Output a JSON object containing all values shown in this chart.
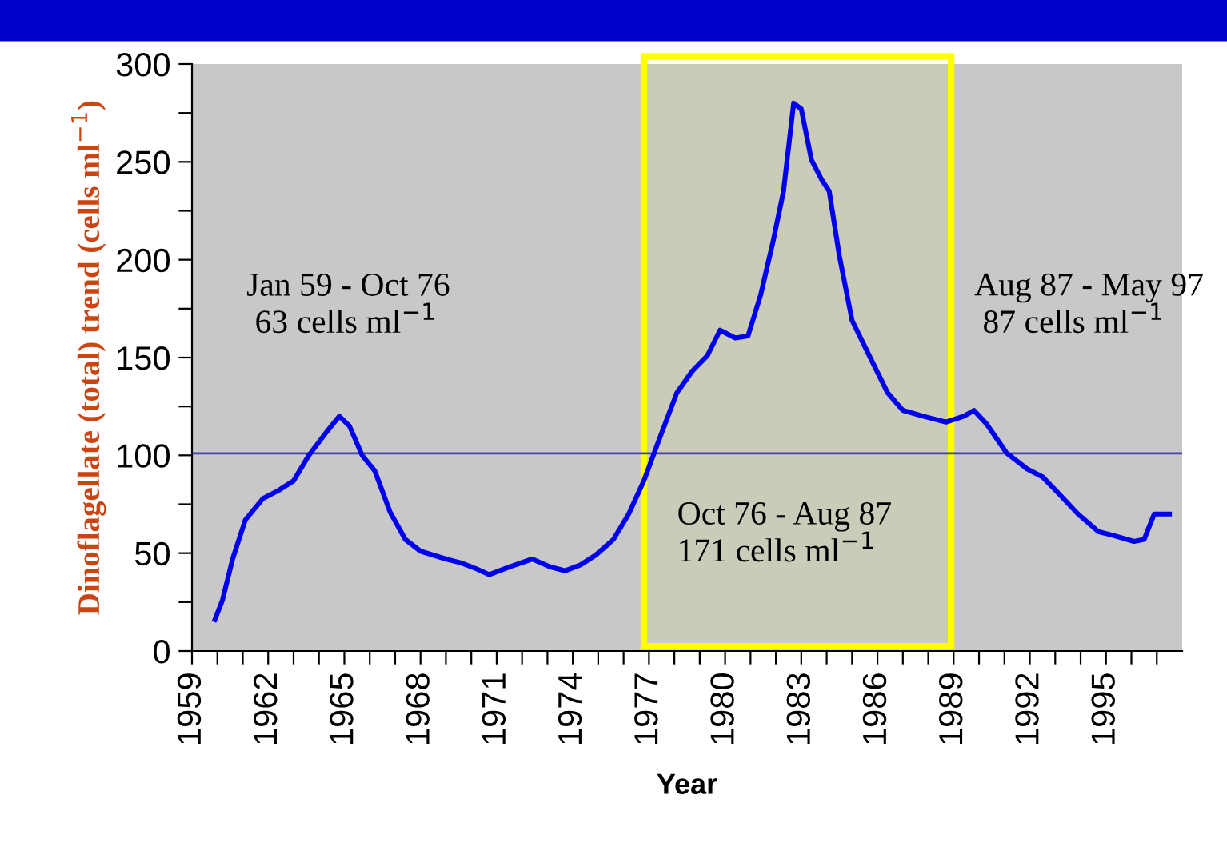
{
  "chart_data": {
    "type": "line",
    "xlabel": "Year",
    "ylabel": "Dinoflagellate (total) trend (cells ml$^{−1}$)",
    "series": [
      {
        "color": "#0000ee",
        "x": [
          1959.9,
          1960.2,
          1960.6,
          1961.1,
          1961.8,
          1962.4,
          1963.0,
          1963.6,
          1964.3,
          1964.8,
          1965.2,
          1965.7,
          1966.2,
          1966.8,
          1967.4,
          1968.0,
          1969.0,
          1969.6,
          1970.2,
          1970.7,
          1971.5,
          1972.4,
          1973.1,
          1973.7,
          1974.3,
          1974.9,
          1975.6,
          1976.2,
          1976.8,
          1977.4,
          1978.1,
          1978.7,
          1979.3,
          1979.8,
          1980.4,
          1980.9,
          1981.4,
          1981.9,
          1982.3,
          1982.7,
          1983.0,
          1983.4,
          1983.8,
          1984.1,
          1984.5,
          1985.0,
          1985.6,
          1986.4,
          1987.0,
          1987.8,
          1988.7,
          1989.4,
          1989.8,
          1990.3,
          1991.1,
          1991.9,
          1992.5,
          1993.1,
          1993.9,
          1994.7,
          1995.3,
          1996.1,
          1996.5,
          1996.9,
          1997.5
        ],
        "values": [
          16,
          26,
          47,
          67,
          78,
          82,
          87,
          100,
          112,
          120,
          115,
          100,
          92,
          71,
          57,
          51,
          47,
          45,
          42,
          39,
          43,
          47,
          43,
          41,
          44,
          49,
          57,
          70,
          87,
          108,
          132,
          143,
          151,
          164,
          160,
          161,
          182,
          210,
          235,
          280,
          277,
          251,
          241,
          235,
          202,
          169,
          153,
          132,
          123,
          120,
          117,
          120,
          123,
          116,
          101,
          93,
          89,
          81,
          70,
          61,
          59,
          56,
          57,
          70,
          70
        ]
      }
    ],
    "xlim": [
      1959,
      1998
    ],
    "ylim": [
      0,
      300
    ],
    "xticks": [
      1959,
      {
        "value": 1960,
        "label": null
      },
      {
        "value": 1961,
        "label": null
      },
      1962,
      {
        "value": 1963,
        "label": null
      },
      {
        "value": 1964,
        "label": null
      },
      1965,
      {
        "value": 1966,
        "label": null
      },
      {
        "value": 1967,
        "label": null
      },
      1968,
      {
        "value": 1969,
        "label": null
      },
      {
        "value": 1970,
        "label": null
      },
      1971,
      {
        "value": 1972,
        "label": null
      },
      {
        "value": 1973,
        "label": null
      },
      1974,
      {
        "value": 1975,
        "label": null
      },
      {
        "value": 1976,
        "label": null
      },
      1977,
      {
        "value": 1978,
        "label": null
      },
      {
        "value": 1979,
        "label": null
      },
      1980,
      {
        "value": 1981,
        "label": null
      },
      {
        "value": 1982,
        "label": null
      },
      1983,
      {
        "value": 1984,
        "label": null
      },
      {
        "value": 1985,
        "label": null
      },
      1986,
      {
        "value": 1987,
        "label": null
      },
      {
        "value": 1988,
        "label": null
      },
      1989,
      {
        "value": 1990,
        "label": null
      },
      {
        "value": 1991,
        "label": null
      },
      1992,
      {
        "value": 1993,
        "label": null
      },
      {
        "value": 1994,
        "label": null
      },
      1995,
      {
        "value": 1996,
        "label": null
      },
      {
        "value": 1997,
        "label": null
      }
    ],
    "yticks": [
      0,
      {
        "value": 25,
        "label": null
      },
      50,
      {
        "value": 75,
        "label": null
      },
      100,
      {
        "value": 125,
        "label": null
      },
      150,
      {
        "value": 175,
        "label": null
      },
      200,
      {
        "value": 225,
        "label": null
      },
      250,
      {
        "value": 275,
        "label": null
      },
      300
    ],
    "ref_lines": [
      {
        "axis": "y",
        "value": 101,
        "color": "#4444aa",
        "line_style": "solid"
      }
    ],
    "bands": [
      {
        "axis": "x",
        "from": 1976.8,
        "to": 1988.9,
        "color": "#ffff00"
      }
    ],
    "annotations": [
      "Jan 59 - Oct 76\n 63 cells ml$^{−1}$",
      "Oct 76 - Aug 87\n171 cells ml$^{−1}$",
      "Aug 87 - May 97\n 87 cells ml$^{−1}$"
    ],
    "grid": false,
    "legend": false,
    "marker": "none",
    "line_style": "solid"
  }
}
